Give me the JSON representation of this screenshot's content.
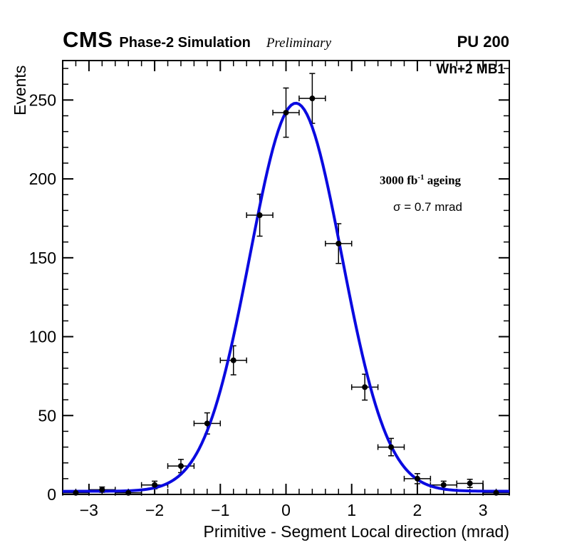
{
  "header": {
    "cms": "CMS",
    "subtitle": "Phase-2 Simulation",
    "preliminary": "Preliminary",
    "pileup": "PU 200"
  },
  "plot": {
    "station_label": "Wh+2 MB1",
    "lumi": {
      "prefix": "3000 fb",
      "sup": "-1",
      "suffix": " ageing"
    },
    "sigma_label": "σ = 0.7 mrad"
  },
  "chart_data": {
    "type": "scatter",
    "xlabel": "Primitive - Segment Local direction (mrad)",
    "ylabel": "Events",
    "xlim": [
      -3.4,
      3.4
    ],
    "ylim": [
      0,
      275
    ],
    "x_ticks": [
      -3,
      -2,
      -1,
      0,
      1,
      2,
      3
    ],
    "x_minor_step": 0.2,
    "y_ticks": [
      0,
      50,
      100,
      150,
      200,
      250
    ],
    "y_minor_step": 10,
    "grid": false,
    "legend": "none",
    "colors": {
      "frame": "#000000",
      "marker": "#000000",
      "curve": "#0a0ae0"
    },
    "points": [
      {
        "x": -3.2,
        "y": 1,
        "xerr": 0.2,
        "yerr": 1.2
      },
      {
        "x": -2.8,
        "y": 3,
        "xerr": 0.2,
        "yerr": 1.7
      },
      {
        "x": -2.4,
        "y": 1,
        "xerr": 0.2,
        "yerr": 1.2
      },
      {
        "x": -2.0,
        "y": 6,
        "xerr": 0.2,
        "yerr": 2.4
      },
      {
        "x": -1.6,
        "y": 18,
        "xerr": 0.2,
        "yerr": 4.2
      },
      {
        "x": -1.2,
        "y": 45,
        "xerr": 0.2,
        "yerr": 6.7
      },
      {
        "x": -0.8,
        "y": 85,
        "xerr": 0.2,
        "yerr": 9.2
      },
      {
        "x": -0.4,
        "y": 177,
        "xerr": 0.2,
        "yerr": 13.3
      },
      {
        "x": 0.0,
        "y": 242,
        "xerr": 0.2,
        "yerr": 15.6
      },
      {
        "x": 0.4,
        "y": 251,
        "xerr": 0.2,
        "yerr": 15.8
      },
      {
        "x": 0.8,
        "y": 159,
        "xerr": 0.2,
        "yerr": 12.6
      },
      {
        "x": 1.2,
        "y": 68,
        "xerr": 0.2,
        "yerr": 8.2
      },
      {
        "x": 1.6,
        "y": 30,
        "xerr": 0.2,
        "yerr": 5.5
      },
      {
        "x": 2.0,
        "y": 10,
        "xerr": 0.2,
        "yerr": 3.2
      },
      {
        "x": 2.4,
        "y": 6,
        "xerr": 0.2,
        "yerr": 2.4
      },
      {
        "x": 2.8,
        "y": 7,
        "xerr": 0.2,
        "yerr": 2.6
      },
      {
        "x": 3.2,
        "y": 1,
        "xerr": 0.2,
        "yerr": 1.2
      }
    ],
    "fit": {
      "type": "gaussian",
      "amplitude": 246,
      "mean": 0.15,
      "sigma": 0.7,
      "baseline": 2,
      "color": "#0a0ae0",
      "label": "σ = 0.7 mrad"
    }
  }
}
